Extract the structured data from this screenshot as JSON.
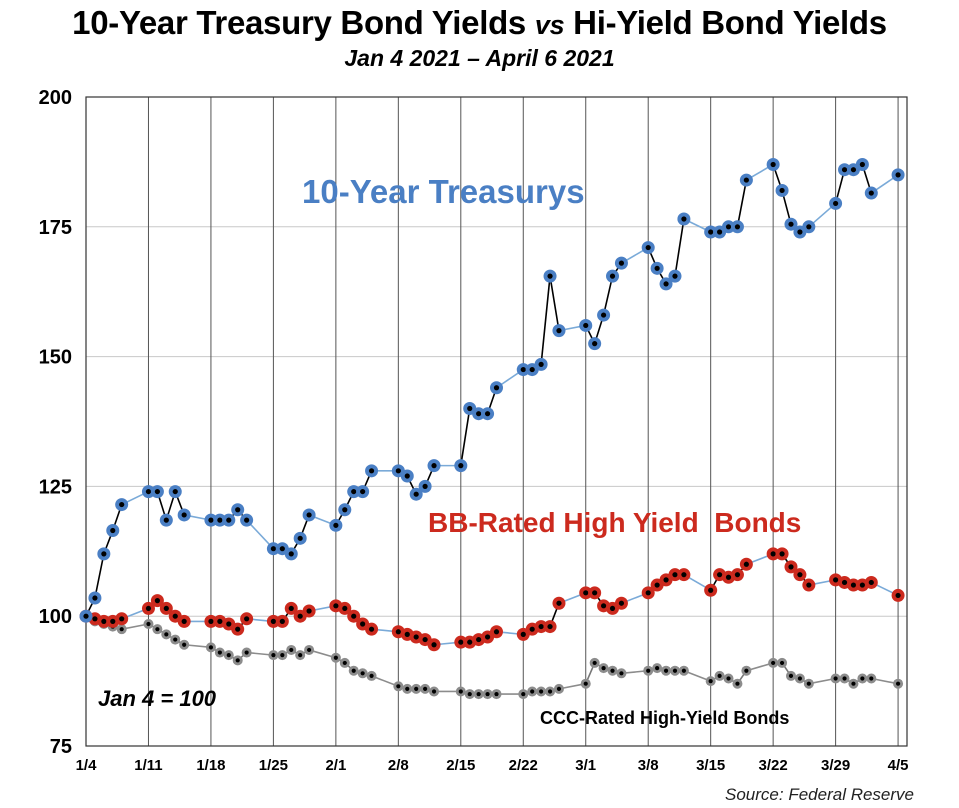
{
  "header": {
    "title_left": "10-Year Treasury Bond Yields",
    "title_vs": "vs",
    "title_right": "Hi-Yield Bond Yields",
    "subtitle": "Jan 4 2021 – April 6 2021"
  },
  "chart_data": {
    "type": "line",
    "title": "10-Year Treasury Bond Yields vs Hi-Yield Bond Yields",
    "subtitle": "Jan 4 2021 – April 6 2021",
    "xlabel": "",
    "ylabel": "",
    "ylim": [
      75,
      200
    ],
    "yticks": [
      75,
      100,
      125,
      150,
      175,
      200
    ],
    "xlim": [
      0,
      92
    ],
    "xticks": [
      {
        "day": 0,
        "label": "1/4"
      },
      {
        "day": 7,
        "label": "1/11"
      },
      {
        "day": 14,
        "label": "1/18"
      },
      {
        "day": 21,
        "label": "1/25"
      },
      {
        "day": 28,
        "label": "2/1"
      },
      {
        "day": 35,
        "label": "2/8"
      },
      {
        "day": 42,
        "label": "2/15"
      },
      {
        "day": 49,
        "label": "2/22"
      },
      {
        "day": 56,
        "label": "3/1"
      },
      {
        "day": 63,
        "label": "3/8"
      },
      {
        "day": 70,
        "label": "3/15"
      },
      {
        "day": 77,
        "label": "3/22"
      },
      {
        "day": 84,
        "label": "3/29"
      },
      {
        "day": 91,
        "label": "4/5"
      }
    ],
    "grid": true,
    "note": "Jan 4 = 100",
    "source": "Source: Federal Reserve",
    "series": [
      {
        "name": "10-Year Treasurys",
        "color": "#4a7fc4",
        "x": [
          0,
          1,
          2,
          3,
          4,
          7,
          8,
          9,
          10,
          11,
          14,
          15,
          16,
          17,
          18,
          21,
          22,
          23,
          24,
          25,
          28,
          29,
          30,
          31,
          32,
          35,
          36,
          37,
          38,
          39,
          42,
          43,
          44,
          45,
          46,
          49,
          50,
          51,
          52,
          53,
          56,
          57,
          58,
          59,
          60,
          63,
          64,
          65,
          66,
          67,
          70,
          71,
          72,
          73,
          74,
          77,
          78,
          79,
          80,
          81,
          84,
          85,
          86,
          87,
          88,
          91
        ],
        "values": [
          100,
          103.5,
          112,
          116.5,
          121.5,
          124,
          124,
          118.5,
          124,
          119.5,
          118.5,
          118.5,
          118.5,
          120.5,
          118.5,
          113,
          113,
          112,
          115,
          119.5,
          117.5,
          120.5,
          124,
          124,
          128,
          128,
          127,
          123.5,
          125,
          129,
          129,
          140,
          139,
          139,
          144,
          147.5,
          147.5,
          148.5,
          165.5,
          155,
          156,
          152.5,
          158,
          165.5,
          168,
          171,
          167,
          164,
          165.5,
          176.5,
          174,
          174,
          175,
          175,
          184,
          187,
          182,
          175.5,
          174,
          175,
          179.5,
          186,
          186,
          187,
          181.5,
          185
        ]
      },
      {
        "name": "BB-Rated High Yield  Bonds",
        "color": "#cc2a1e",
        "x": [
          0,
          1,
          2,
          3,
          4,
          7,
          8,
          9,
          10,
          11,
          14,
          15,
          16,
          17,
          18,
          21,
          22,
          23,
          24,
          25,
          28,
          29,
          30,
          31,
          32,
          35,
          36,
          37,
          38,
          39,
          42,
          43,
          44,
          45,
          46,
          49,
          50,
          51,
          52,
          53,
          56,
          57,
          58,
          59,
          60,
          63,
          64,
          65,
          66,
          67,
          70,
          71,
          72,
          73,
          74,
          77,
          78,
          79,
          80,
          81,
          84,
          85,
          86,
          87,
          88,
          91
        ],
        "values": [
          100,
          99.5,
          99,
          99,
          99.5,
          101.5,
          103,
          101.5,
          100,
          99,
          99,
          99,
          98.5,
          97.5,
          99.5,
          99,
          99,
          101.5,
          100,
          101,
          102,
          101.5,
          100,
          98.5,
          97.5,
          97,
          96.5,
          96,
          95.5,
          94.5,
          95,
          95,
          95.5,
          96,
          97,
          96.5,
          97.5,
          98,
          98,
          102.5,
          104.5,
          104.5,
          102,
          101.5,
          102.5,
          104.5,
          106,
          107,
          108,
          108,
          105,
          108,
          107.5,
          108,
          110,
          112,
          112,
          109.5,
          108,
          106,
          107,
          106.5,
          106,
          106,
          106.5,
          104
        ]
      },
      {
        "name": "CCC-Rated High-Yield Bonds",
        "color": "#8c8c8c",
        "x": [
          0,
          1,
          2,
          3,
          4,
          7,
          8,
          9,
          10,
          11,
          14,
          15,
          16,
          17,
          18,
          21,
          22,
          23,
          24,
          25,
          28,
          29,
          30,
          31,
          32,
          35,
          36,
          37,
          38,
          39,
          42,
          43,
          44,
          45,
          46,
          49,
          50,
          51,
          52,
          53,
          56,
          57,
          58,
          59,
          60,
          63,
          64,
          65,
          66,
          67,
          70,
          71,
          72,
          73,
          74,
          77,
          78,
          79,
          80,
          81,
          84,
          85,
          86,
          87,
          88,
          91
        ],
        "values": [
          100,
          99,
          98.5,
          98,
          97.5,
          98.5,
          97.5,
          96.5,
          95.5,
          94.5,
          94,
          93,
          92.5,
          91.5,
          93,
          92.5,
          92.5,
          93.5,
          92.5,
          93.5,
          92,
          91,
          89.5,
          89,
          88.5,
          86.5,
          86,
          86,
          86,
          85.5,
          85.5,
          85,
          85,
          85,
          85,
          85,
          85.5,
          85.5,
          85.5,
          86,
          87,
          91,
          90,
          89.5,
          89,
          89.5,
          90,
          89.5,
          89.5,
          89.5,
          87.5,
          88.5,
          88,
          87,
          89.5,
          91,
          91,
          88.5,
          88,
          87,
          88,
          88,
          87,
          88,
          88,
          87
        ]
      }
    ]
  }
}
